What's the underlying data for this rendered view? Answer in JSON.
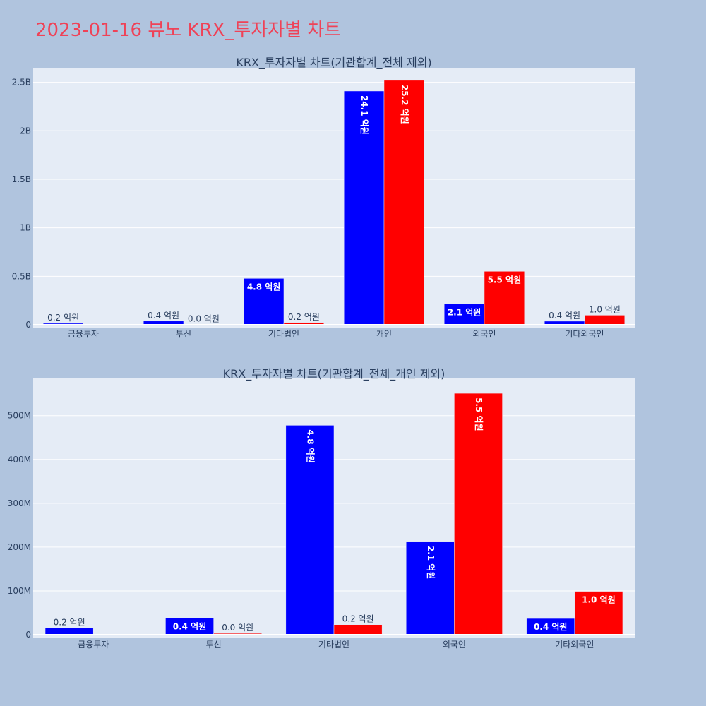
{
  "page": {
    "title": "2023-01-16 뷰노 KRX_투자자별 차트"
  },
  "colors": {
    "background": "#b0c4de",
    "plot_bg": "#e5ecf6",
    "title": "#ef4257",
    "series_a": "#0000ff",
    "series_b": "#ff0000"
  },
  "chart_data": [
    {
      "type": "bar",
      "title": "KRX_투자자별 차트(기관합계_전체 제외)",
      "categories": [
        "금융투자",
        "투신",
        "기타법인",
        "개인",
        "외국인",
        "기타외국인"
      ],
      "series": [
        {
          "values": [
            15000000,
            38000000,
            478000000,
            2410000000,
            213000000,
            37000000
          ],
          "labels": [
            "0.2 억원",
            "0.4 억원",
            "4.8 억원",
            "24.1 억원",
            "2.1 억원",
            "0.4 억원"
          ]
        },
        {
          "values": [
            0,
            3000000,
            23000000,
            2520000000,
            551000000,
            99000000
          ],
          "labels": [
            "",
            "0.0 억원",
            "0.2 억원",
            "25.2 억원",
            "5.5 억원",
            "1.0 억원"
          ]
        }
      ],
      "ylim": [
        0,
        2650000000
      ],
      "yticks": [
        0,
        500000000,
        1000000000,
        1500000000,
        2000000000,
        2500000000
      ],
      "ytick_labels": [
        "0",
        "0.5B",
        "1B",
        "1.5B",
        "2B",
        "2.5B"
      ],
      "grid": true
    },
    {
      "type": "bar",
      "title": "KRX_투자자별 차트(기관합계_전체_개인 제외)",
      "categories": [
        "금융투자",
        "투신",
        "기타법인",
        "외국인",
        "기타외국인"
      ],
      "series": [
        {
          "values": [
            15000000,
            38000000,
            478000000,
            213000000,
            37000000
          ],
          "labels": [
            "0.2 억원",
            "0.4 억원",
            "4.8 억원",
            "2.1 억원",
            "0.4 억원"
          ]
        },
        {
          "values": [
            0,
            3000000,
            23000000,
            551000000,
            99000000
          ],
          "labels": [
            "",
            "0.0 억원",
            "0.2 억원",
            "5.5 억원",
            "1.0 억원"
          ]
        }
      ],
      "ylim": [
        0,
        585000000
      ],
      "yticks": [
        0,
        100000000,
        200000000,
        300000000,
        400000000,
        500000000
      ],
      "ytick_labels": [
        "0",
        "100M",
        "200M",
        "300M",
        "400M",
        "500M"
      ],
      "grid": true
    }
  ]
}
